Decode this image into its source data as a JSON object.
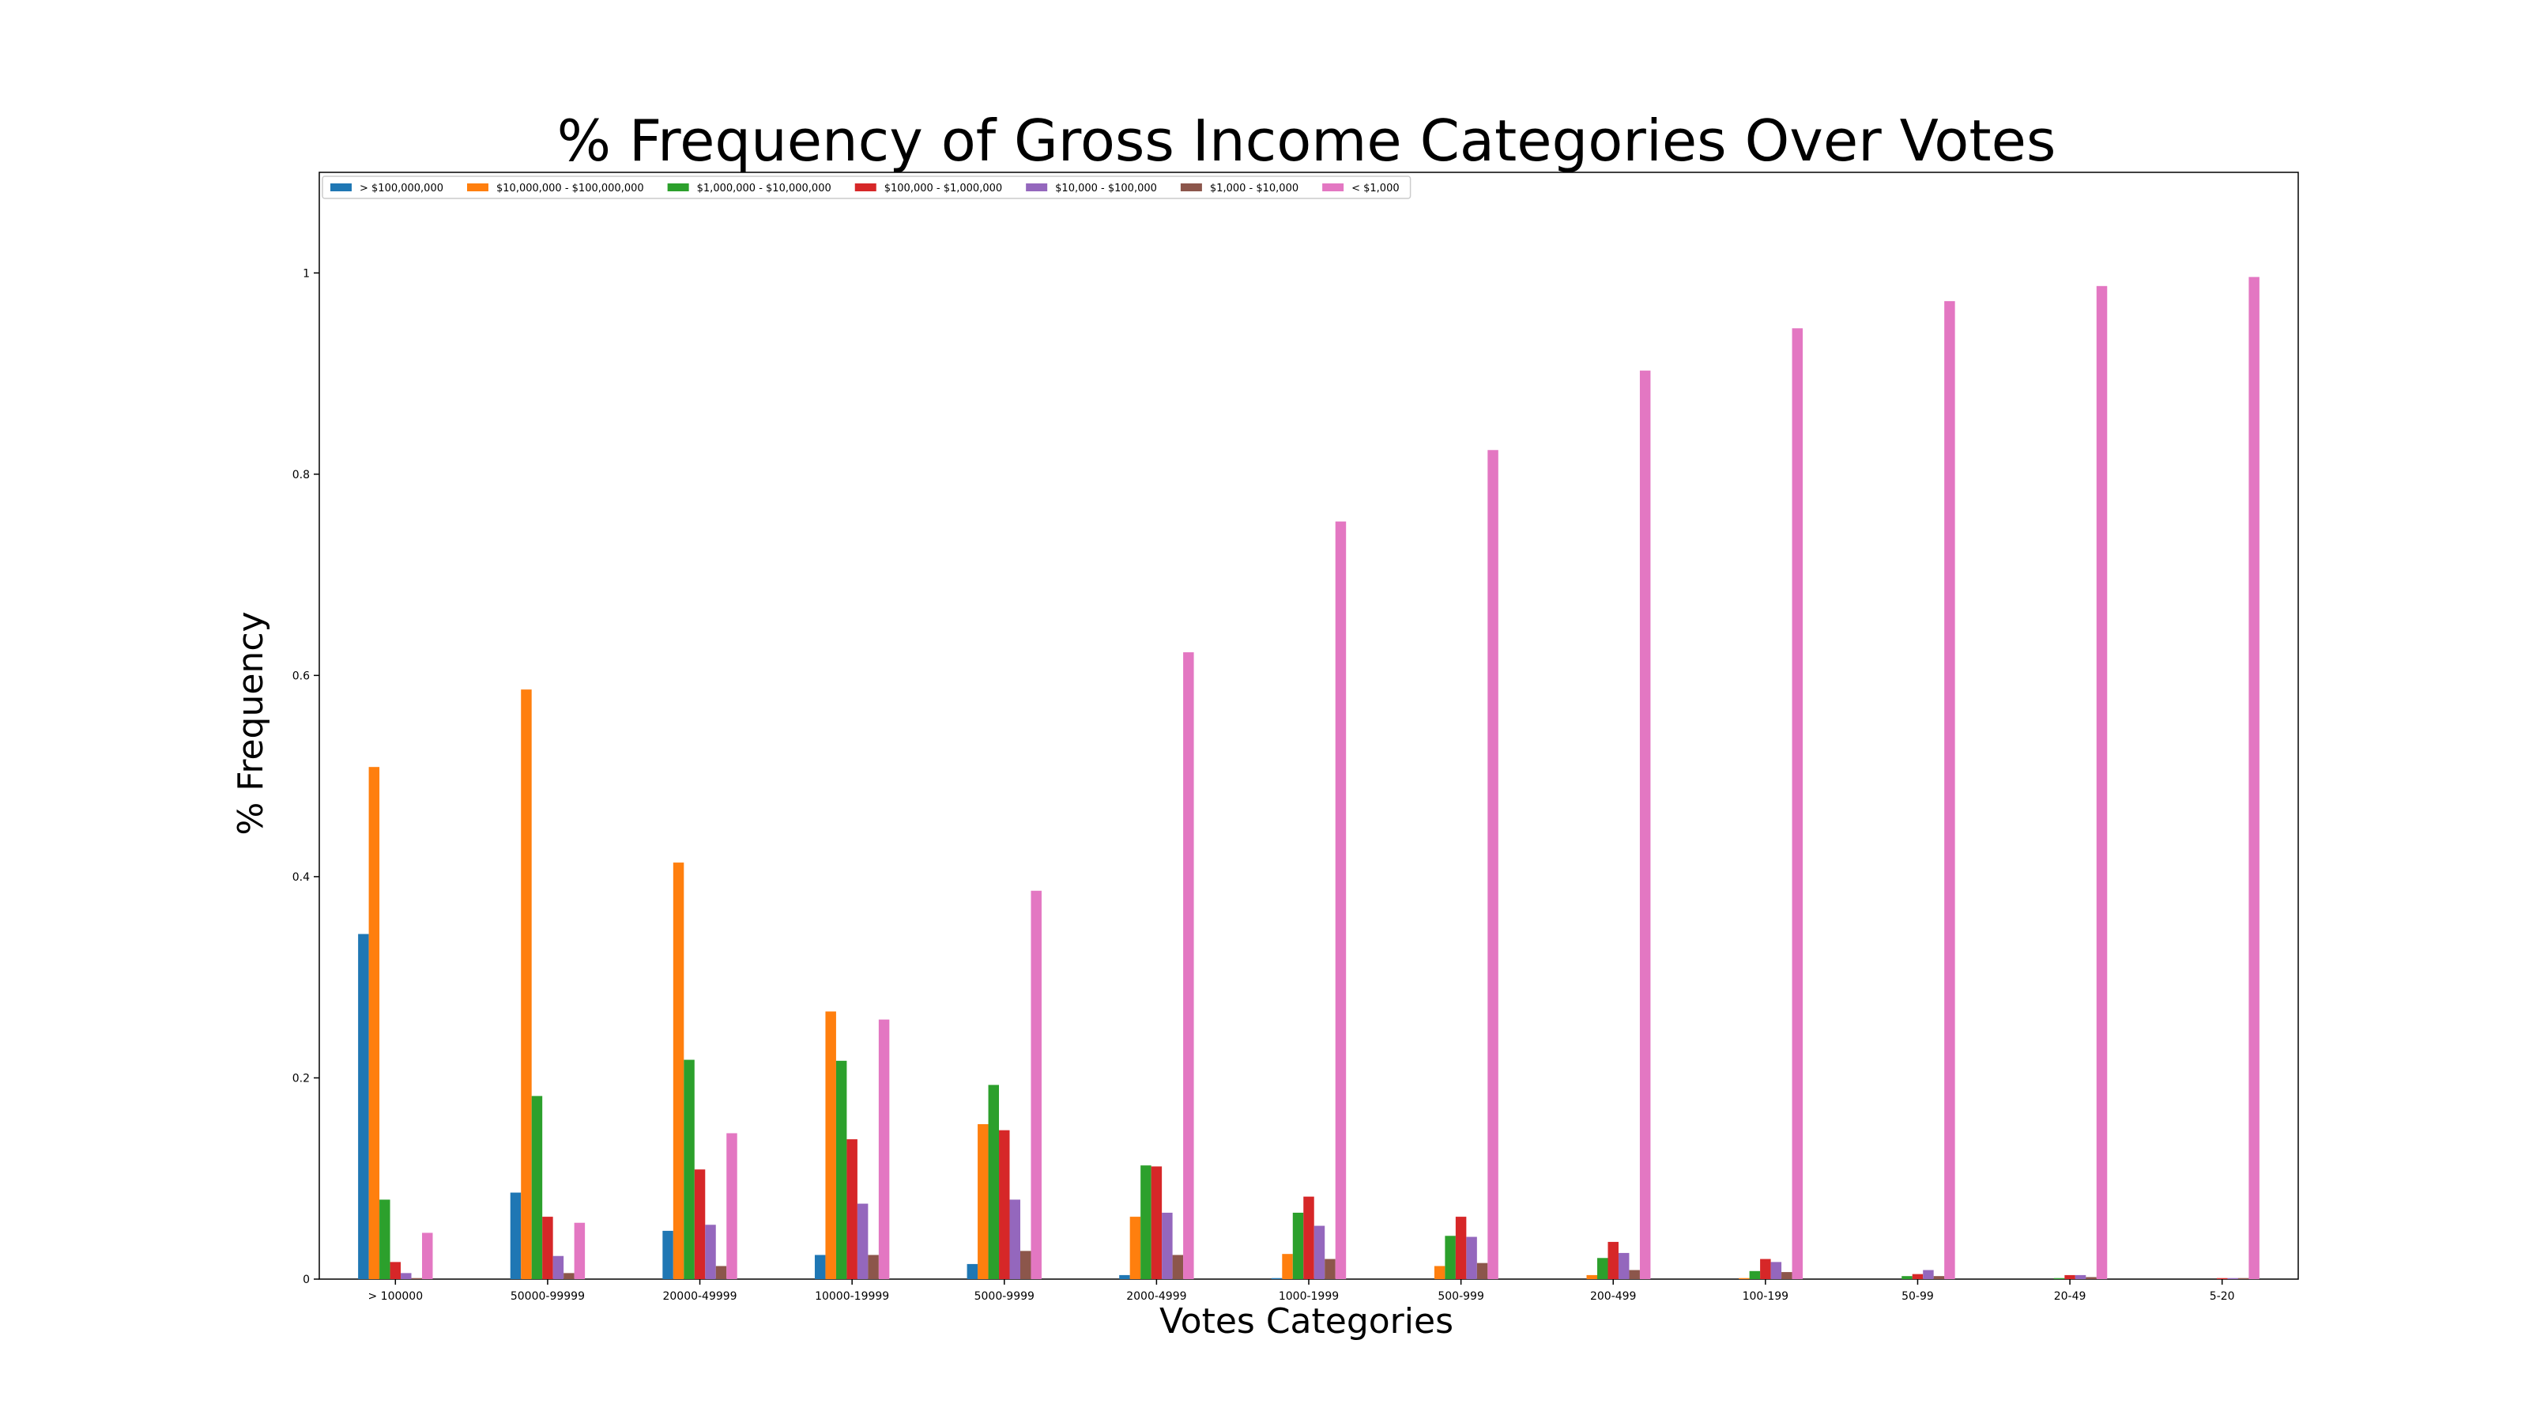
{
  "chart_data": {
    "type": "bar",
    "title": "% Frequency of Gross Income Categories Over Votes",
    "xlabel": "Votes Categories",
    "ylabel": "% Frequency",
    "ylim": [
      0,
      1.1
    ],
    "yticks": [
      0,
      0.2,
      0.4,
      0.6,
      0.8,
      1
    ],
    "ytick_labels": [
      "0",
      "0.2",
      "0.4",
      "0.6",
      "0.8",
      "1"
    ],
    "grid": false,
    "legend_position": "top-left",
    "categories": [
      "> 100000",
      "50000-99999",
      "20000-49999",
      "10000-19999",
      "5000-9999",
      "2000-4999",
      "1000-1999",
      "500-999",
      "200-499",
      "100-199",
      "50-99",
      "20-49",
      "5-20"
    ],
    "series": [
      {
        "name": "> $100,000,000",
        "color": "#1f77b4",
        "values": [
          0.343,
          0.086,
          0.048,
          0.024,
          0.015,
          0.004,
          0.001,
          0.0,
          0.0,
          0.0,
          0.0,
          0.0,
          0.0
        ]
      },
      {
        "name": "$10,000,000 - $100,000,000",
        "color": "#ff7f0e",
        "values": [
          0.509,
          0.586,
          0.414,
          0.266,
          0.154,
          0.062,
          0.025,
          0.013,
          0.004,
          0.001,
          0.0,
          0.0,
          0.0
        ]
      },
      {
        "name": "$1,000,000 - $10,000,000",
        "color": "#2ca02c",
        "values": [
          0.079,
          0.182,
          0.218,
          0.217,
          0.193,
          0.113,
          0.066,
          0.043,
          0.021,
          0.008,
          0.003,
          0.001,
          0.0
        ]
      },
      {
        "name": "$100,000 - $1,000,000",
        "color": "#d62728",
        "values": [
          0.017,
          0.062,
          0.109,
          0.139,
          0.148,
          0.112,
          0.082,
          0.062,
          0.037,
          0.02,
          0.005,
          0.004,
          0.001
        ]
      },
      {
        "name": "$10,000 - $100,000",
        "color": "#9467bd",
        "values": [
          0.006,
          0.023,
          0.054,
          0.075,
          0.079,
          0.066,
          0.053,
          0.042,
          0.026,
          0.017,
          0.009,
          0.004,
          0.001
        ]
      },
      {
        "name": "$1,000 - $10,000",
        "color": "#8c564b",
        "values": [
          0.001,
          0.006,
          0.013,
          0.024,
          0.028,
          0.024,
          0.02,
          0.016,
          0.009,
          0.007,
          0.003,
          0.002,
          0.001
        ]
      },
      {
        "name": "< $1,000",
        "color": "#e377c2",
        "values": [
          0.046,
          0.056,
          0.145,
          0.258,
          0.386,
          0.623,
          0.753,
          0.824,
          0.903,
          0.945,
          0.972,
          0.987,
          0.996
        ]
      }
    ]
  }
}
